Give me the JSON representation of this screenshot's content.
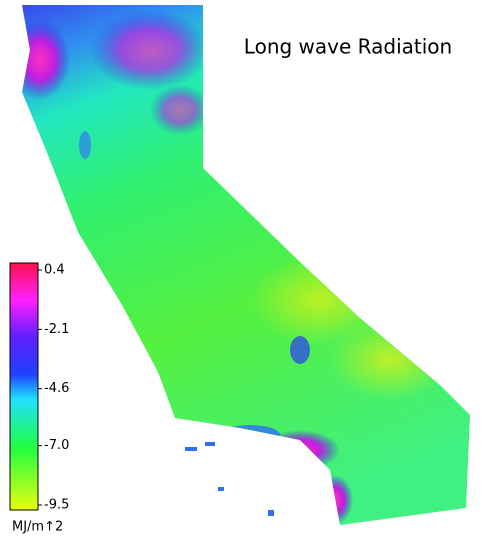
{
  "title": "Long wave Radiation",
  "colorbar": {
    "label": "MJ/m↑2",
    "range": [
      -9.5,
      0.4
    ],
    "ticks": [
      0.4,
      -2.1,
      -4.6,
      {
        "value": -7,
        "label": "-7.0"
      },
      -9.5
    ]
  }
}
